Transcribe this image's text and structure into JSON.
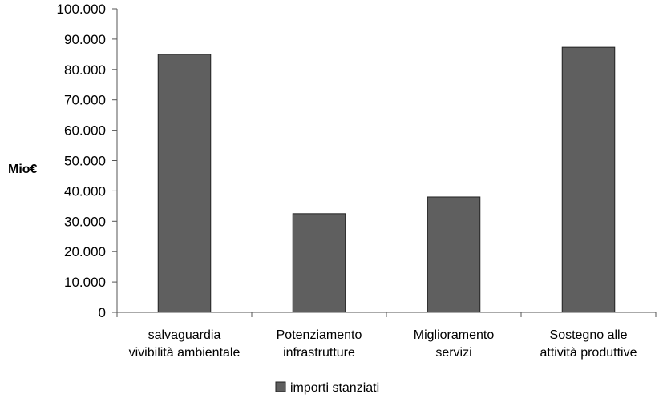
{
  "chart_data": {
    "type": "bar",
    "categories": [
      [
        "salvaguardia",
        "vivibilità ambientale"
      ],
      [
        "Potenziamento",
        "infrastrutture"
      ],
      [
        "Miglioramento",
        "servizi"
      ],
      [
        "Sostegno alle",
        "attività produttive"
      ]
    ],
    "series": [
      {
        "name": "importi stanziati",
        "values": [
          85000,
          32500,
          38000,
          87300
        ]
      }
    ],
    "ylabel": "Mio€",
    "xlabel": "",
    "ylim": [
      0,
      100000
    ],
    "yticks": [
      0,
      10000,
      20000,
      30000,
      40000,
      50000,
      60000,
      70000,
      80000,
      90000,
      100000
    ],
    "ytick_labels": [
      "0",
      "10.000",
      "20.000",
      "30.000",
      "40.000",
      "50.000",
      "60.000",
      "70.000",
      "80.000",
      "90.000",
      "100.000"
    ],
    "bar_color": "#5f5f5f",
    "legend_position": "bottom",
    "grid": false
  }
}
